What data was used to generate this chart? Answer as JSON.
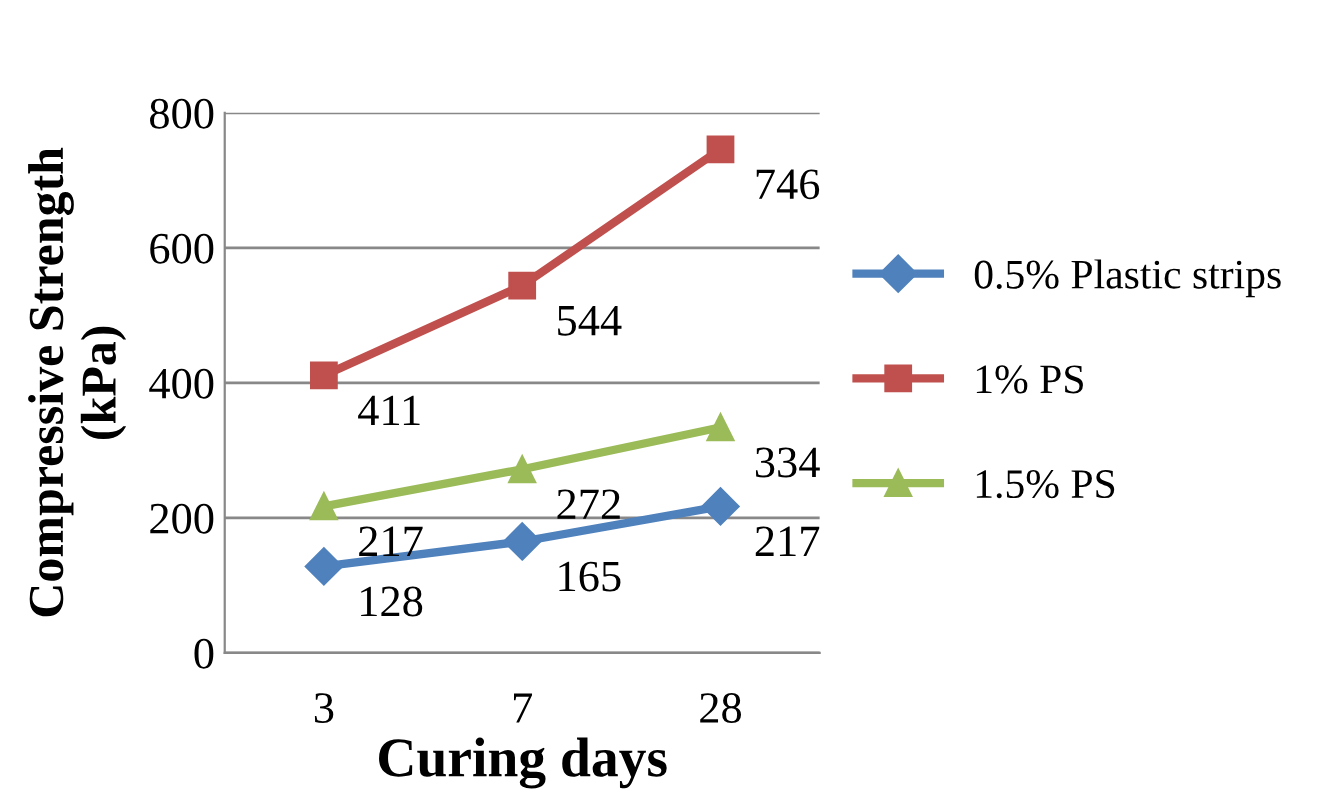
{
  "chart_data": {
    "type": "line",
    "xlabel": "Curing days",
    "ylabel": "Compressive Strength\n(kPa)",
    "categories": [
      "3",
      "7",
      "28"
    ],
    "series": [
      {
        "name": "0.5% Plastic strips",
        "color": "#4f81bd",
        "marker": "diamond",
        "values": [
          128,
          165,
          217
        ]
      },
      {
        "name": "1% PS",
        "color": "#c0504d",
        "marker": "square",
        "values": [
          411,
          544,
          746
        ]
      },
      {
        "name": "1.5% PS",
        "color": "#9bbb59",
        "marker": "triangle",
        "values": [
          217,
          272,
          334
        ]
      }
    ],
    "ylim": [
      0,
      800
    ],
    "yticks": [
      0,
      200,
      400,
      600,
      800
    ],
    "grid": "y",
    "legend": "right",
    "data_labels": true
  }
}
